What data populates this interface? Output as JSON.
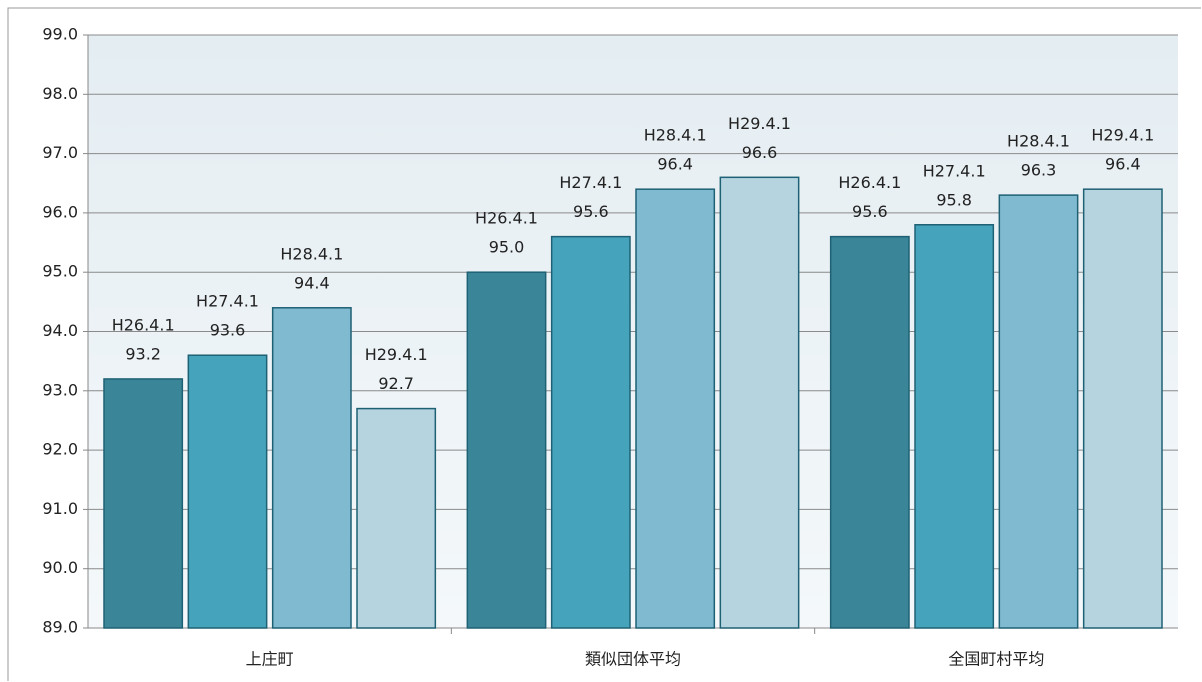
{
  "chart_data": {
    "type": "bar",
    "categories": [
      "上庄町",
      "類似団体平均",
      "全国町村平均"
    ],
    "series": [
      {
        "name": "H26.4.1",
        "color": "#3a8598",
        "values": [
          93.2,
          95.0,
          95.6
        ],
        "value_labels": [
          "93.2",
          "95.0",
          "95.6"
        ]
      },
      {
        "name": "H27.4.1",
        "color": "#45a3bb",
        "values": [
          93.6,
          95.6,
          95.8
        ],
        "value_labels": [
          "93.6",
          "95.6",
          "95.8"
        ]
      },
      {
        "name": "H28.4.1",
        "color": "#7fbad0",
        "values": [
          94.4,
          96.4,
          96.3
        ],
        "value_labels": [
          "94.4",
          "96.4",
          "96.3"
        ]
      },
      {
        "name": "H29.4.1",
        "color": "#b5d4df",
        "values": [
          92.7,
          96.6,
          96.4
        ],
        "value_labels": [
          "92.7",
          "96.6",
          "96.4"
        ]
      }
    ],
    "ylim": [
      89,
      99
    ],
    "yticks": [
      {
        "value": 89,
        "label": "89.0"
      },
      {
        "value": 90,
        "label": "90.0"
      },
      {
        "value": 91,
        "label": "91.0"
      },
      {
        "value": 92,
        "label": "92.0"
      },
      {
        "value": 93,
        "label": "93.0"
      },
      {
        "value": 94,
        "label": "94.0"
      },
      {
        "value": 95,
        "label": "95.0"
      },
      {
        "value": 96,
        "label": "96.0"
      },
      {
        "value": 97,
        "label": "97.0"
      },
      {
        "value": 98,
        "label": "98.0"
      },
      {
        "value": 99,
        "label": "99.0"
      }
    ],
    "grid": true
  }
}
